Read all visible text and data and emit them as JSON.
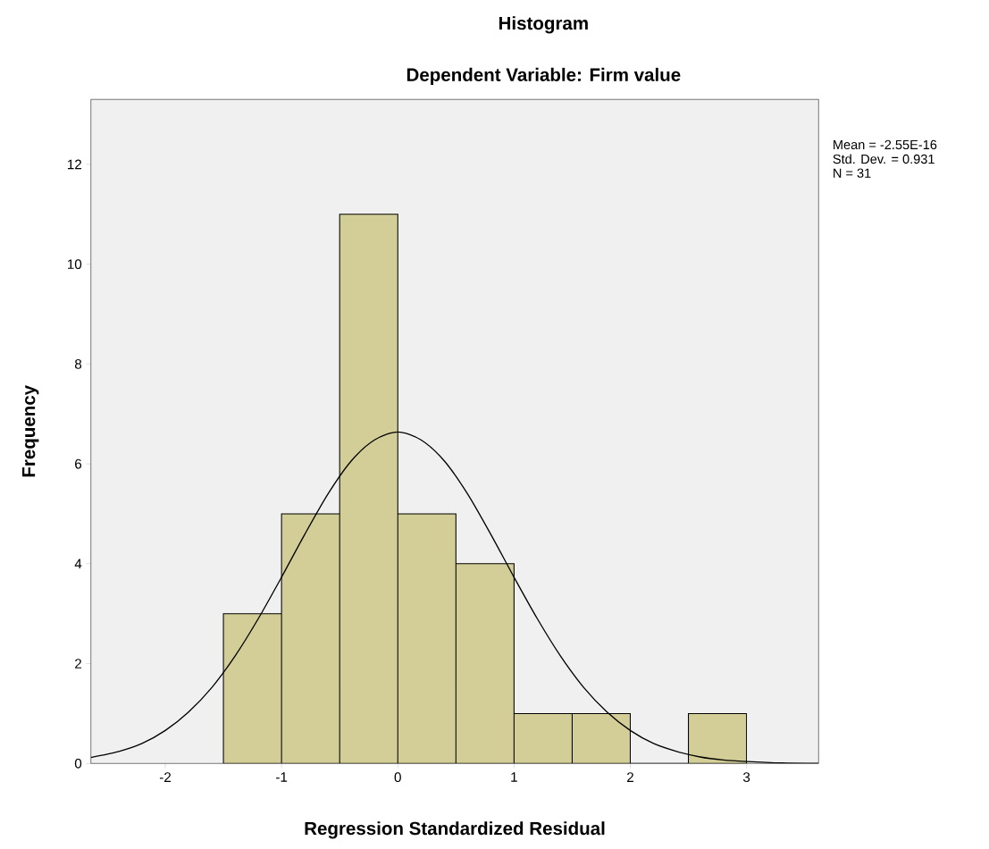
{
  "chart_data": {
    "type": "histogram",
    "title": "Histogram",
    "subtitle": "Dependent Variable: Firm value",
    "xlabel": "Regression Standardized Residual",
    "ylabel": "Frequency",
    "bins": [
      -1.5,
      -1,
      -0.5,
      0,
      0.5,
      1,
      1.5,
      2,
      2.5,
      3
    ],
    "values": [
      3,
      5,
      11,
      5,
      4,
      1,
      1,
      0,
      1
    ],
    "color": "#d3ce97",
    "series": [
      {
        "type": "line",
        "color": "#000000",
        "x": [
          -2.64,
          -2.4,
          -2.2,
          -2,
          -1.8,
          -1.6,
          -1.4,
          -1.2,
          -1,
          -0.8,
          -0.6,
          -0.4,
          -0.2,
          0,
          0.2,
          0.4,
          0.6,
          0.8,
          1,
          1.2,
          1.4,
          1.6,
          1.8,
          2,
          2.2,
          2.4,
          2.6,
          2.8,
          3,
          3.3,
          3.62
        ],
        "values": [
          0.12,
          0.24,
          0.4,
          0.66,
          1.03,
          1.52,
          2.15,
          2.9,
          3.73,
          4.59,
          5.4,
          6.06,
          6.48,
          6.64,
          6.48,
          6.06,
          5.4,
          4.59,
          3.73,
          2.9,
          2.15,
          1.52,
          1.03,
          0.66,
          0.4,
          0.24,
          0.13,
          0.07,
          0.04,
          0.01,
          0.0
        ]
      }
    ],
    "xlim": [
      -2.64,
      3.62
    ],
    "ylim": [
      0,
      13.3
    ],
    "xticks": [
      -2,
      -1,
      0,
      1,
      2,
      3
    ],
    "yticks": [
      0,
      2,
      4,
      6,
      8,
      10,
      12
    ],
    "annotations": [
      "Mean = -2.55E-16",
      "Std. Dev. = 0.931",
      "N = 31"
    ]
  }
}
